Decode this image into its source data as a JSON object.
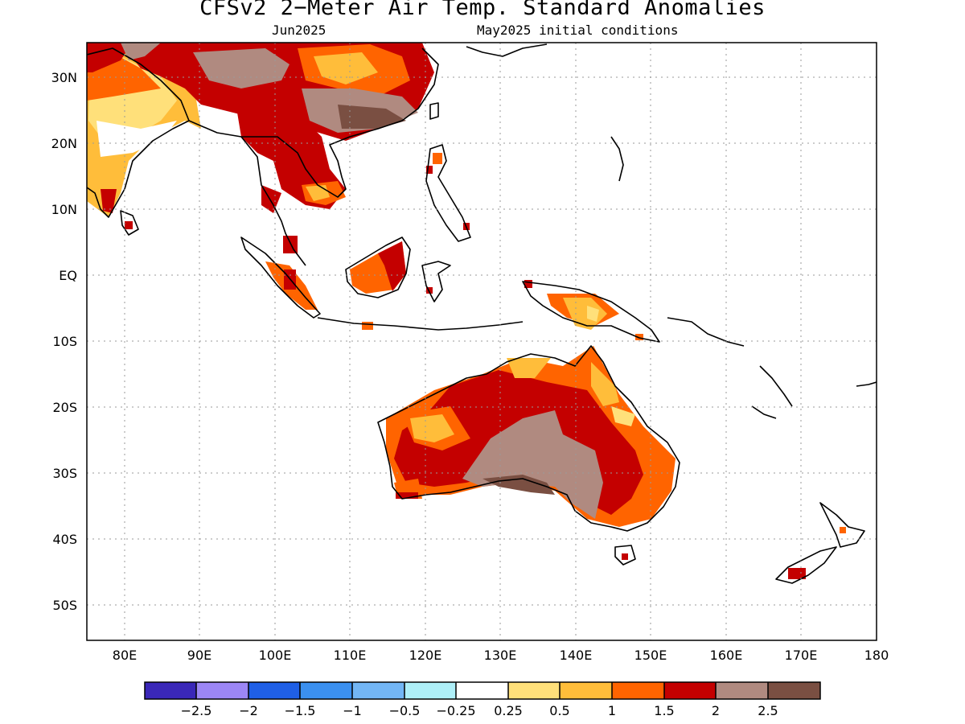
{
  "title": "CFSv2 2−Meter Air Temp. Standard Anomalies",
  "subtitle_left": "Jun2025",
  "subtitle_right": "May2025 initial conditions",
  "map": {
    "lon_range": [
      75,
      180
    ],
    "lat_range": [
      -55,
      35
    ],
    "grid": true,
    "lat_labels": [
      "30N",
      "20N",
      "10N",
      "EQ",
      "10S",
      "20S",
      "30S",
      "40S",
      "50S"
    ],
    "lat_values": [
      30,
      20,
      10,
      0,
      -10,
      -20,
      -30,
      -40,
      -50
    ],
    "lon_labels": [
      "80E",
      "90E",
      "100E",
      "110E",
      "120E",
      "130E",
      "140E",
      "150E",
      "160E",
      "170E",
      "180"
    ],
    "lon_values": [
      80,
      90,
      100,
      110,
      120,
      130,
      140,
      150,
      160,
      170,
      180
    ]
  },
  "colorbar": {
    "colors": [
      "#3a27b8",
      "#9c86f5",
      "#1f5fe6",
      "#3b90f0",
      "#73b6f5",
      "#aeeff8",
      "#ffffff",
      "#ffe07a",
      "#ffbd3a",
      "#ff6400",
      "#c40000",
      "#b08a80",
      "#7a4f42"
    ],
    "labels": [
      "−2.5",
      "−2",
      "−1.5",
      "−1",
      "−0.5",
      "−0.25",
      "0.25",
      "0.5",
      "1",
      "1.5",
      "2",
      "2.5"
    ]
  }
}
